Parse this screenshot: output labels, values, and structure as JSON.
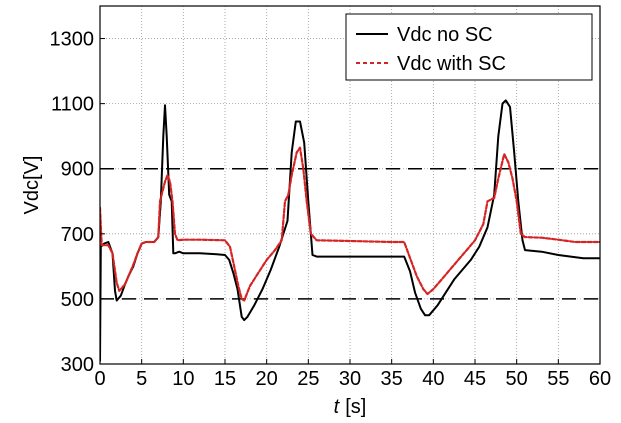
{
  "chart_data": {
    "type": "line",
    "title": "",
    "xlabel": {
      "var": "t",
      "unit": "[s]"
    },
    "ylabel": "Vdc[V]",
    "xlim": [
      0,
      60
    ],
    "ylim": [
      300,
      1400
    ],
    "xticks": [
      0,
      5,
      10,
      15,
      20,
      25,
      30,
      35,
      40,
      45,
      50,
      55,
      60
    ],
    "yticks": [
      300,
      500,
      700,
      900,
      1100,
      1300
    ],
    "grid": true,
    "legend_position": "top-right",
    "reference_lines": [
      500,
      900
    ],
    "series": [
      {
        "name": "Vdc no SC",
        "color": "#000000",
        "dash": "solid",
        "points": [
          [
            0,
            310
          ],
          [
            0.1,
            660
          ],
          [
            0.5,
            670
          ],
          [
            1,
            675
          ],
          [
            1.5,
            640
          ],
          [
            1.8,
            525
          ],
          [
            2,
            495
          ],
          [
            2.5,
            510
          ],
          [
            3,
            545
          ],
          [
            3.5,
            575
          ],
          [
            4,
            600
          ],
          [
            4.5,
            640
          ],
          [
            5,
            670
          ],
          [
            5.5,
            675
          ],
          [
            6,
            675
          ],
          [
            6.5,
            675
          ],
          [
            7,
            690
          ],
          [
            7.3,
            800
          ],
          [
            7.6,
            1000
          ],
          [
            7.8,
            1095
          ],
          [
            8,
            1000
          ],
          [
            8.3,
            820
          ],
          [
            8.6,
            800
          ],
          [
            8.8,
            640
          ],
          [
            9,
            640
          ],
          [
            9.5,
            645
          ],
          [
            10,
            640
          ],
          [
            12,
            640
          ],
          [
            14,
            637
          ],
          [
            15,
            635
          ],
          [
            15.5,
            620
          ],
          [
            16,
            580
          ],
          [
            16.5,
            530
          ],
          [
            17,
            445
          ],
          [
            17.3,
            435
          ],
          [
            17.7,
            445
          ],
          [
            18.5,
            480
          ],
          [
            19.5,
            530
          ],
          [
            20.5,
            590
          ],
          [
            21.5,
            660
          ],
          [
            22.5,
            740
          ],
          [
            23,
            950
          ],
          [
            23.5,
            1045
          ],
          [
            24,
            1045
          ],
          [
            24.5,
            980
          ],
          [
            25,
            800
          ],
          [
            25.5,
            635
          ],
          [
            26,
            630
          ],
          [
            30,
            630
          ],
          [
            35,
            630
          ],
          [
            36.5,
            630
          ],
          [
            37.2,
            585
          ],
          [
            37.8,
            520
          ],
          [
            38.5,
            470
          ],
          [
            39,
            450
          ],
          [
            39.5,
            450
          ],
          [
            40.5,
            480
          ],
          [
            41.5,
            520
          ],
          [
            42.5,
            560
          ],
          [
            43.5,
            590
          ],
          [
            44.5,
            620
          ],
          [
            45.5,
            660
          ],
          [
            46.5,
            720
          ],
          [
            47.3,
            820
          ],
          [
            47.8,
            1000
          ],
          [
            48.3,
            1100
          ],
          [
            48.7,
            1110
          ],
          [
            49.2,
            1090
          ],
          [
            49.7,
            950
          ],
          [
            50.2,
            800
          ],
          [
            50.7,
            680
          ],
          [
            51,
            650
          ],
          [
            53,
            645
          ],
          [
            55,
            635
          ],
          [
            58,
            625
          ],
          [
            60,
            625
          ]
        ]
      },
      {
        "name": "Vdc with SC",
        "color": "#d62424",
        "dash": "dashed",
        "points": [
          [
            0,
            780
          ],
          [
            0.2,
            665
          ],
          [
            1,
            665
          ],
          [
            1.5,
            640
          ],
          [
            2,
            550
          ],
          [
            2.3,
            525
          ],
          [
            3,
            545
          ],
          [
            3.5,
            575
          ],
          [
            4,
            605
          ],
          [
            4.5,
            640
          ],
          [
            5,
            670
          ],
          [
            5.5,
            675
          ],
          [
            6.5,
            675
          ],
          [
            7,
            690
          ],
          [
            7.2,
            800
          ],
          [
            7.5,
            830
          ],
          [
            7.8,
            860
          ],
          [
            8.1,
            880
          ],
          [
            8.4,
            860
          ],
          [
            8.7,
            800
          ],
          [
            9,
            700
          ],
          [
            9.3,
            680
          ],
          [
            10,
            682
          ],
          [
            12,
            682
          ],
          [
            15,
            680
          ],
          [
            15.6,
            660
          ],
          [
            16.1,
            600
          ],
          [
            16.6,
            540
          ],
          [
            17,
            500
          ],
          [
            17.3,
            495
          ],
          [
            18,
            540
          ],
          [
            19,
            580
          ],
          [
            20,
            620
          ],
          [
            21,
            650
          ],
          [
            21.8,
            680
          ],
          [
            22.2,
            800
          ],
          [
            22.6,
            820
          ],
          [
            23,
            880
          ],
          [
            23.6,
            950
          ],
          [
            24,
            965
          ],
          [
            24.4,
            900
          ],
          [
            24.8,
            800
          ],
          [
            25.3,
            700
          ],
          [
            26,
            680
          ],
          [
            30,
            678
          ],
          [
            35,
            675
          ],
          [
            36.5,
            675
          ],
          [
            37,
            640
          ],
          [
            38,
            570
          ],
          [
            38.8,
            530
          ],
          [
            39.3,
            515
          ],
          [
            40,
            530
          ],
          [
            41,
            560
          ],
          [
            42,
            590
          ],
          [
            43,
            620
          ],
          [
            44,
            650
          ],
          [
            45,
            680
          ],
          [
            46,
            730
          ],
          [
            46.5,
            800
          ],
          [
            47.3,
            810
          ],
          [
            47.8,
            870
          ],
          [
            48.5,
            945
          ],
          [
            49,
            920
          ],
          [
            49.5,
            870
          ],
          [
            50,
            800
          ],
          [
            50.5,
            700
          ],
          [
            51,
            690
          ],
          [
            53,
            688
          ],
          [
            55,
            682
          ],
          [
            57,
            675
          ],
          [
            60,
            675
          ]
        ]
      }
    ]
  }
}
